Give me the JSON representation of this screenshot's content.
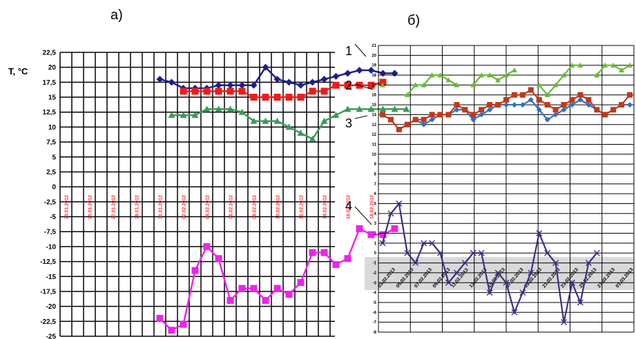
{
  "chart_data": [
    {
      "panel_label": "а)",
      "type": "line",
      "ylabel": "Т, °С",
      "ylim": [
        -25,
        22.5
      ],
      "ytick_labels": [
        "22,5",
        "20",
        "17,5",
        "15",
        "12,5",
        "10",
        "7,5",
        "5",
        "2,5",
        "0",
        "-2,5",
        "-5",
        "-7,5",
        "-10",
        "-12,5",
        "-15",
        "-17,5",
        "-20",
        "-22,5",
        "-25"
      ],
      "x_date_labels": [
        "23.01.2012",
        "25.01.2012",
        "27.01.2012",
        "29.01.2012",
        "31.01.2012",
        "02.02.2012",
        "04.02.2012",
        "06.02.2012",
        "08.02.2012",
        "10.02.2012",
        "12.02.2012",
        "14.02.2012",
        "16.02.2012",
        "18.02.2012"
      ],
      "grid": true,
      "colors": {
        "series_1": "#1c1f8c",
        "series_2": "#f21a1a",
        "series_3": "#3a9a5a",
        "series_4": "#ee22ee",
        "date_labels": "#ff3333"
      },
      "series": [
        {
          "color": "#1c1f8c",
          "marker": "diamond",
          "start_day": 8,
          "values": [
            18,
            17.5,
            16.5,
            16.5,
            16.5,
            17,
            17,
            17,
            17,
            20,
            18,
            17.5,
            17,
            17.5,
            18,
            18.5,
            19,
            19.5,
            19.5,
            19,
            19
          ]
        },
        {
          "color": "#f21a1a",
          "marker": "square",
          "start_day": 10,
          "values": [
            16,
            16,
            16,
            16,
            16,
            16,
            15,
            15,
            15,
            15,
            15,
            16,
            16,
            17,
            17,
            17,
            17,
            17.5
          ]
        },
        {
          "color": "#3a9a5a",
          "marker": "triangle",
          "start_day": 9,
          "values": [
            12,
            12,
            12,
            13,
            13,
            13,
            12.5,
            11,
            11,
            11,
            10,
            9,
            8,
            11,
            12,
            13,
            13,
            13,
            13,
            13,
            13
          ]
        },
        {
          "color": "#ee22ee",
          "marker": "square",
          "start_day": 8,
          "values": [
            -22,
            -24,
            -23,
            -14,
            -10,
            -12,
            -19,
            -17,
            -17,
            -19,
            -17,
            -18,
            -16,
            -11,
            -11,
            -13,
            -12,
            -7,
            -8,
            -8,
            -7
          ]
        }
      ]
    },
    {
      "panel_label": "б)",
      "type": "line",
      "ylim": [
        -8,
        21
      ],
      "ytick_labels": [
        "21",
        "20",
        "19",
        "18",
        "17",
        "16",
        "15",
        "14",
        "13",
        "12",
        "11",
        "10",
        "9",
        "8",
        "7",
        "6",
        "5",
        "4",
        "3",
        "2",
        "1",
        "0",
        "-1",
        "-2",
        "-3",
        "-4",
        "-5",
        "-6",
        "-7",
        "-8"
      ],
      "x_date_labels": [
        "03.02.2013",
        "05.02.2013",
        "07.02.2013",
        "09.02.2013",
        "11.02.2013",
        "13.02.2013",
        "15.02.2013",
        "17.02.2013",
        "19.02.2013",
        "21.02.2013",
        "23.02.2013",
        "25.02.2013",
        "27.02.2013",
        "01.03.2013"
      ],
      "grid": true,
      "curve_labels": [
        "1",
        "2",
        "3",
        "4"
      ],
      "colors": {
        "curve_1": "#66bb33",
        "curve_2": "#c0391b",
        "curve_3": "#2e6fc7",
        "curve_4": "#3a2f86",
        "date_band": "#d9d9d9"
      },
      "series": [
        {
          "curve": "1",
          "color": "#66bb33",
          "marker": "triangle",
          "segments": [
            [
              0,
              [
                17
              ]
            ],
            [
              3,
              [
                16,
                17,
                17,
                18,
                18,
                17.5,
                17
              ]
            ],
            [
              11,
              [
                17,
                18,
                18,
                17.5,
                18,
                18.5
              ]
            ],
            [
              19,
              [
                17,
                16,
                17,
                18,
                19,
                19
              ]
            ],
            [
              26,
              [
                18,
                19,
                19,
                18.5,
                19
              ]
            ]
          ]
        },
        {
          "curve": "3",
          "color": "#2e6fc7",
          "marker": "diamond",
          "values": [
            14,
            13.5,
            12.5,
            13,
            13.5,
            13,
            13.5,
            14,
            14,
            14.5,
            14.5,
            13.5,
            14,
            14.5,
            15,
            15,
            15,
            15,
            15.5,
            14.5,
            13.5,
            14,
            14.5,
            15,
            15.5,
            15,
            14.5,
            14,
            14.5,
            15,
            15
          ]
        },
        {
          "curve": "2",
          "color": "#c0391b",
          "marker": "square",
          "values": [
            14,
            13.5,
            12.5,
            13,
            13.5,
            13.5,
            14,
            14,
            14,
            15,
            14.5,
            14,
            14.5,
            15,
            15,
            15.5,
            16,
            16,
            16.5,
            15.5,
            15,
            14.5,
            15,
            15.5,
            16,
            15.5,
            14.5,
            14,
            14.5,
            15,
            16
          ]
        },
        {
          "curve": "4",
          "color": "#3a2f86",
          "marker": "x",
          "values": [
            1,
            4,
            5,
            0,
            -1,
            1,
            1,
            0,
            -3,
            -2,
            -1,
            0,
            0,
            -4,
            -2,
            -3,
            -6,
            -4,
            -2,
            2,
            0,
            -1,
            -7,
            -3,
            -5,
            -1,
            0
          ]
        }
      ]
    }
  ]
}
